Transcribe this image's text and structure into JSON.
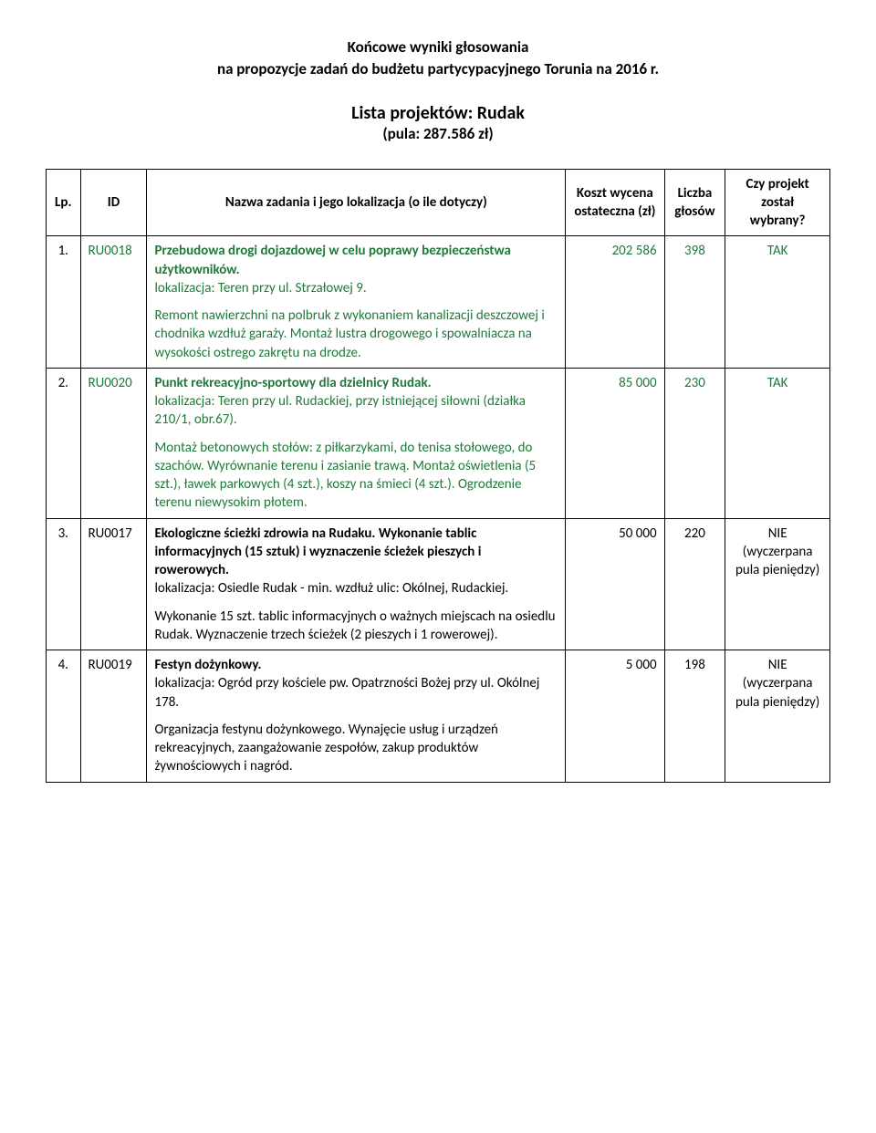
{
  "header": {
    "title_line1": "Końcowe wyniki głosowania",
    "title_line2": "na propozycje zadań do budżetu partycypacyjnego Torunia na 2016 r.",
    "list_title": "Lista projektów: Rudak",
    "list_subtitle": "(pula: 287.586 zł)"
  },
  "table": {
    "columns": {
      "lp": "Lp.",
      "id": "ID",
      "name": "Nazwa zadania i jego lokalizacja (o ile dotyczy)",
      "cost": "Koszt wycena ostateczna (zł)",
      "votes": "Liczba głosów",
      "selected": "Czy projekt został wybrany?"
    },
    "rows": [
      {
        "lp": "1.",
        "id": "RU0018",
        "title_bold": "Przebudowa drogi dojazdowej w celu poprawy bezpieczeństwa użytkowników.",
        "location": "lokalizacja: Teren przy ul. Strzałowej 9.",
        "desc": "Remont nawierzchni na polbruk z wykonaniem kanalizacji deszczowej i chodnika wzdłuż garaży. Montaż lustra drogowego i spowalniacza na wysokości ostrego zakrętu na drodze.",
        "cost": "202 586",
        "votes": "398",
        "selected": "TAK",
        "accepted": true
      },
      {
        "lp": "2.",
        "id": "RU0020",
        "title_bold": "Punkt rekreacyjno-sportowy dla dzielnicy Rudak.",
        "location": "lokalizacja: Teren przy ul. Rudackiej, przy istniejącej siłowni (działka 210/1, obr.67).",
        "desc": "Montaż betonowych stołów: z piłkarzykami, do tenisa stołowego, do szachów. Wyrównanie terenu i zasianie trawą. Montaż oświetlenia (5 szt.), ławek parkowych (4 szt.), koszy na śmieci (4 szt.). Ogrodzenie terenu niewysokim płotem.",
        "cost": "85 000",
        "votes": "230",
        "selected": "TAK",
        "accepted": true
      },
      {
        "lp": "3.",
        "id": "RU0017",
        "title_bold": "Ekologiczne ścieżki zdrowia na Rudaku. Wykonanie tablic informacyjnych (15 sztuk) i wyznaczenie ścieżek pieszych i rowerowych.",
        "location": "lokalizacja: Osiedle Rudak - min. wzdłuż ulic: Okólnej, Rudackiej.",
        "desc": "Wykonanie 15 szt. tablic informacyjnych o ważnych miejscach na osiedlu Rudak. Wyznaczenie trzech ścieżek (2 pieszych i 1 rowerowej).",
        "cost": "50 000",
        "votes": "220",
        "selected": "NIE (wyczerpana pula pieniędzy)",
        "accepted": false
      },
      {
        "lp": "4.",
        "id": "RU0019",
        "title_bold": "Festyn dożynkowy.",
        "location": "lokalizacja: Ogród przy kościele pw. Opatrzności Bożej przy ul. Okólnej 178.",
        "desc": "Organizacja festynu dożynkowego. Wynajęcie usług i urządzeń rekreacyjnych, zaangażowanie zespołów, zakup produktów żywnościowych i nagród.",
        "cost": "5 000",
        "votes": "198",
        "selected": "NIE (wyczerpana pula pieniędzy)",
        "accepted": false
      }
    ]
  },
  "colors": {
    "accepted_text": "#1f7a3a",
    "text": "#000000",
    "border": "#000000",
    "background": "#ffffff"
  }
}
